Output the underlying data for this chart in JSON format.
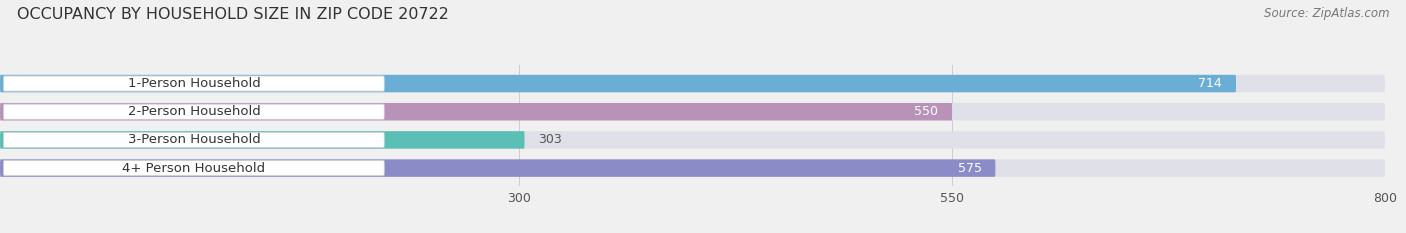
{
  "title": "OCCUPANCY BY HOUSEHOLD SIZE IN ZIP CODE 20722",
  "source": "Source: ZipAtlas.com",
  "categories": [
    "1-Person Household",
    "2-Person Household",
    "3-Person Household",
    "4+ Person Household"
  ],
  "values": [
    714,
    550,
    303,
    575
  ],
  "bar_colors": [
    "#6aaed6",
    "#b992b9",
    "#5bbfb5",
    "#8b8bc8"
  ],
  "value_text_colors": [
    "#ffffff",
    "#555555",
    "#555555",
    "#555555"
  ],
  "xlim": [
    0,
    800
  ],
  "xticks": [
    300,
    550,
    800
  ],
  "background_color": "#f0f0f0",
  "bar_bg_color": "#e0e0e8",
  "title_fontsize": 11.5,
  "source_fontsize": 8.5,
  "label_fontsize": 9.5,
  "value_fontsize": 9
}
